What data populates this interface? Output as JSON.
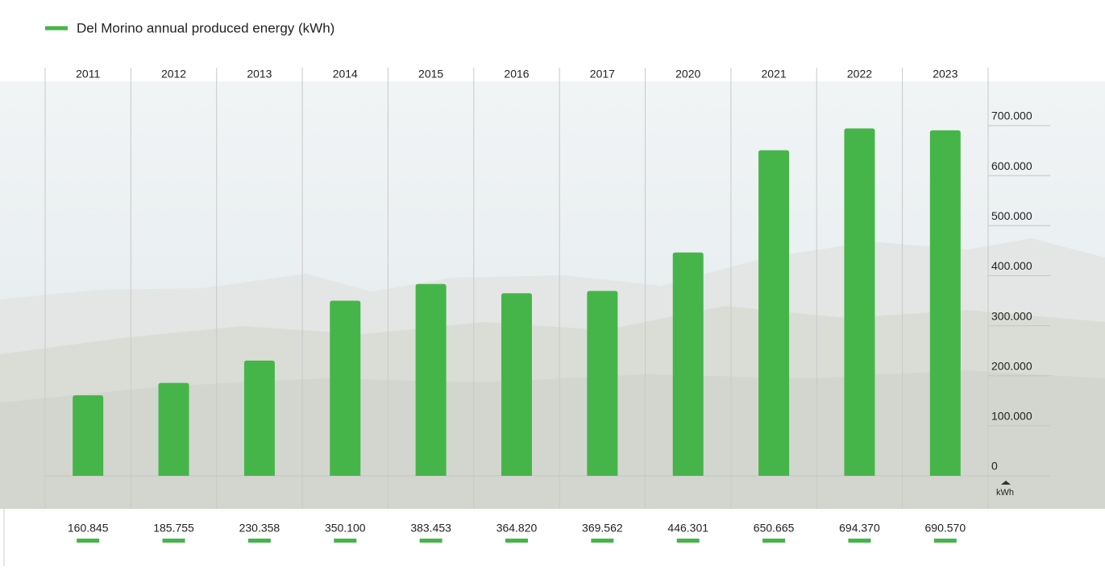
{
  "chart_data": {
    "type": "bar",
    "categories": [
      "2011",
      "2012",
      "2013",
      "2014",
      "2015",
      "2016",
      "2017",
      "2020",
      "2021",
      "2022",
      "2023"
    ],
    "series": [
      {
        "name": "Del Morino annual produced energy (kWh)",
        "color": "#46b549",
        "values": [
          160845,
          185755,
          230358,
          350100,
          383453,
          364820,
          369562,
          446301,
          650665,
          694370,
          690570
        ],
        "value_labels": [
          "160.845",
          "185.755",
          "230.358",
          "350.100",
          "383.453",
          "364.820",
          "369.562",
          "446.301",
          "650.665",
          "694.370",
          "690.570"
        ]
      }
    ],
    "ylim": [
      0,
      700000
    ],
    "yticks": [
      0,
      {
        "value": 100000,
        "label": "100.000"
      },
      {
        "value": 200000,
        "label": "200.000"
      },
      {
        "value": 300000,
        "label": "300.000"
      },
      {
        "value": 400000,
        "label": "400.000"
      },
      {
        "value": 500000,
        "label": "500.000"
      },
      {
        "value": 600000,
        "label": "600.000"
      },
      {
        "value": 700000,
        "label": "700.000"
      }
    ],
    "y_label": "kWh",
    "grid": true
  }
}
